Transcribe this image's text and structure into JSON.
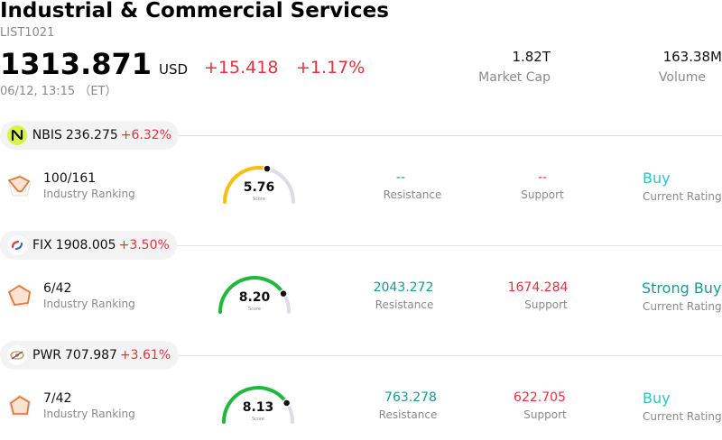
{
  "header": {
    "title": "Industrial & Commercial Services",
    "code": "LIST1021",
    "price": "1313.871",
    "currency": "USD",
    "change": "+15.418",
    "change_pct": "+1.17%",
    "time": "06/12, 13:15 （ET）",
    "market_cap_value": "1.82T",
    "market_cap_label": "Market Cap",
    "volume_value": "163.38M",
    "volume_label": "Volume"
  },
  "stocks": [
    {
      "symbol": "NBIS",
      "price": "236.275",
      "change_pct": "+6.32%",
      "rank": "100/161",
      "rank_label": "Industry Ranking",
      "score": "5.76",
      "score_value": 5.76,
      "score_label": "Score",
      "resistance": "--",
      "resistance_label": "Resistance",
      "support": "--",
      "support_label": "Support",
      "rating": "Buy",
      "rating_label": "Current Rating"
    },
    {
      "symbol": "FIX",
      "price": "1908.005",
      "change_pct": "+3.50%",
      "rank": "6/42",
      "rank_label": "Industry Ranking",
      "score": "8.20",
      "score_value": 8.2,
      "score_label": "Score",
      "resistance": "2043.272",
      "resistance_label": "Resistance",
      "support": "1674.284",
      "support_label": "Support",
      "rating": "Strong Buy",
      "rating_label": "Current Rating"
    },
    {
      "symbol": "PWR",
      "price": "707.987",
      "change_pct": "+3.61%",
      "rank": "7/42",
      "rank_label": "Industry Ranking",
      "score": "8.13",
      "score_value": 8.13,
      "score_label": "Score",
      "resistance": "763.278",
      "resistance_label": "Resistance",
      "support": "622.705",
      "support_label": "Support",
      "rating": "Buy",
      "rating_label": "Current Rating"
    }
  ],
  "colors": {
    "up_red": "#e8313f",
    "green": "#139e8a",
    "rating_cyan": "#2ec2c2",
    "gauge_yellow": "#f5c00f",
    "gauge_green": "#21b83e",
    "gauge_track": "#dcdce6"
  },
  "icons": {
    "nbis_logo": "nbis-logo-icon",
    "fix_logo": "fix-logo-icon",
    "pwr_logo": "pwr-logo-icon",
    "ranking": "ranking-pentagon-icon"
  }
}
